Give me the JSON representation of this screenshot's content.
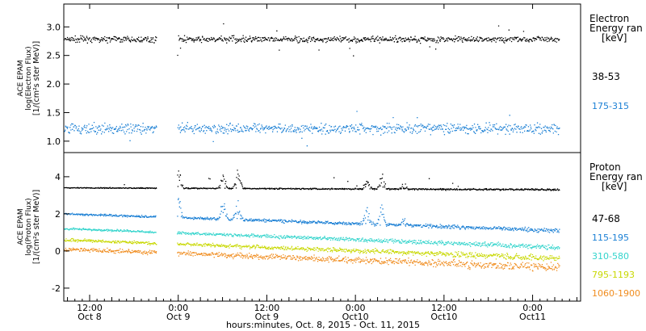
{
  "chart_data": {
    "type": "scatter",
    "x_axis": {
      "label": "hours:minutes, Oct. 8, 2015 - Oct. 11, 2015",
      "range_hours": [
        8.5,
        78.5
      ],
      "ticks": [
        {
          "hours": 12,
          "time": "12:00",
          "date": "Oct 8"
        },
        {
          "hours": 24,
          "time": "0:00",
          "date": "Oct 9"
        },
        {
          "hours": 36,
          "time": "12:00",
          "date": "Oct 9"
        },
        {
          "hours": 48,
          "time": "0:00",
          "date": "Oct10"
        },
        {
          "hours": 60,
          "time": "12:00",
          "date": "Oct10"
        },
        {
          "hours": 72,
          "time": "0:00",
          "date": "Oct11"
        }
      ]
    },
    "panels": [
      {
        "id": "electron",
        "ylabel": [
          "ACE EPAM",
          "log(Electron Flux)",
          "[1/(cm²s ster MeV)]"
        ],
        "ylim": [
          0.8,
          3.4
        ],
        "yticks": [
          "1.0",
          "1.5",
          "2.0",
          "2.5",
          "3.0"
        ],
        "ytick_values": [
          1.0,
          1.5,
          2.0,
          2.5,
          3.0
        ],
        "legend_title": [
          "Electron",
          "Energy ran",
          "[keV]"
        ],
        "series": [
          {
            "name": "38-53",
            "color": "#000000",
            "level": 2.78,
            "spread": 0.08
          },
          {
            "name": "175-315",
            "color": "#1a7fd4",
            "level": 1.22,
            "spread": 0.13
          }
        ]
      },
      {
        "id": "proton",
        "ylabel": [
          "ACE EPAM",
          "log(Proton Flux)",
          "[1/(cm²s ster MeV)]"
        ],
        "ylim": [
          -2.7,
          5.3
        ],
        "yticks": [
          "-2",
          "0",
          "2",
          "4"
        ],
        "ytick_values": [
          -2,
          0,
          2,
          4
        ],
        "legend_title": [
          "Proton",
          "Energy ran",
          "[keV]"
        ],
        "series": [
          {
            "name": "47-68",
            "color": "#000000",
            "start": 3.4,
            "end": 3.3
          },
          {
            "name": "115-195",
            "color": "#1a7fd4",
            "start": 2.0,
            "end": 1.1
          },
          {
            "name": "310-580",
            "color": "#33d4cc",
            "start": 1.2,
            "end": 0.2
          },
          {
            "name": "795-1193",
            "color": "#c8d800",
            "start": 0.6,
            "end": -0.4
          },
          {
            "name": "1060-1900",
            "color": "#f08c1e",
            "start": 0.1,
            "end": -0.9
          }
        ]
      }
    ],
    "data_gaps_hours": [
      [
        21.0,
        23.8
      ]
    ]
  }
}
